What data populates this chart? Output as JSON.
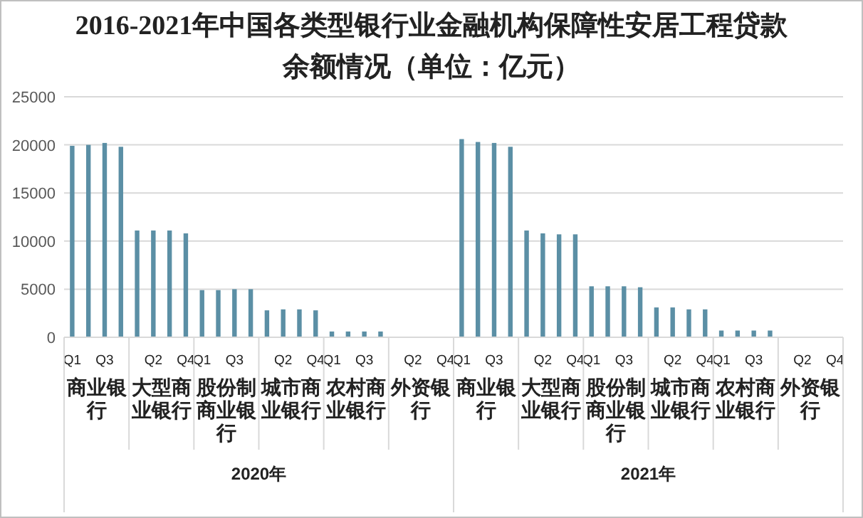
{
  "chart_data": {
    "type": "bar",
    "title": "2016-2021年中国各类型银行业金融机构保障性安居工程贷款余额情况（单位：亿元）",
    "categories": [
      "Q1",
      null,
      "Q3",
      null,
      null,
      "Q2",
      null,
      "Q4",
      "Q1",
      null,
      "Q3",
      null,
      null,
      "Q2",
      null,
      "Q4",
      "Q1",
      null,
      "Q3",
      null,
      null,
      "Q2",
      null,
      "Q4",
      "Q1",
      null,
      "Q3",
      null,
      null,
      "Q2",
      null,
      "Q4",
      "Q1",
      null,
      "Q3",
      null,
      null,
      "Q2",
      null,
      "Q4",
      "Q1",
      null,
      "Q3",
      null,
      null,
      "Q2",
      null,
      "Q4"
    ],
    "values": [
      19900,
      20000,
      20200,
      19800,
      11100,
      11100,
      11100,
      10800,
      4900,
      4900,
      5000,
      5000,
      2800,
      2900,
      2900,
      2800,
      600,
      600,
      600,
      600,
      null,
      null,
      null,
      null,
      20600,
      20300,
      20200,
      19800,
      11100,
      10800,
      10700,
      10700,
      5300,
      5300,
      5300,
      5200,
      3100,
      3100,
      2900,
      2900,
      700,
      700,
      700,
      700,
      null,
      null,
      null,
      null
    ],
    "color": "#5b8fa5",
    "ylim": [
      0,
      25000
    ],
    "yticks": [
      0,
      5000,
      10000,
      15000,
      20000,
      25000
    ],
    "grid": "y",
    "annotations": [
      "商业银行",
      "大型商业银行",
      "股份制商业银行",
      "城市商业银行",
      "农村商业银行",
      "外资银行",
      "商业银行",
      "大型商业银行",
      "股份制商业银行",
      "城市商业银行",
      "农村商业银行",
      "外资银行",
      "2020年",
      "2021年"
    ]
  }
}
